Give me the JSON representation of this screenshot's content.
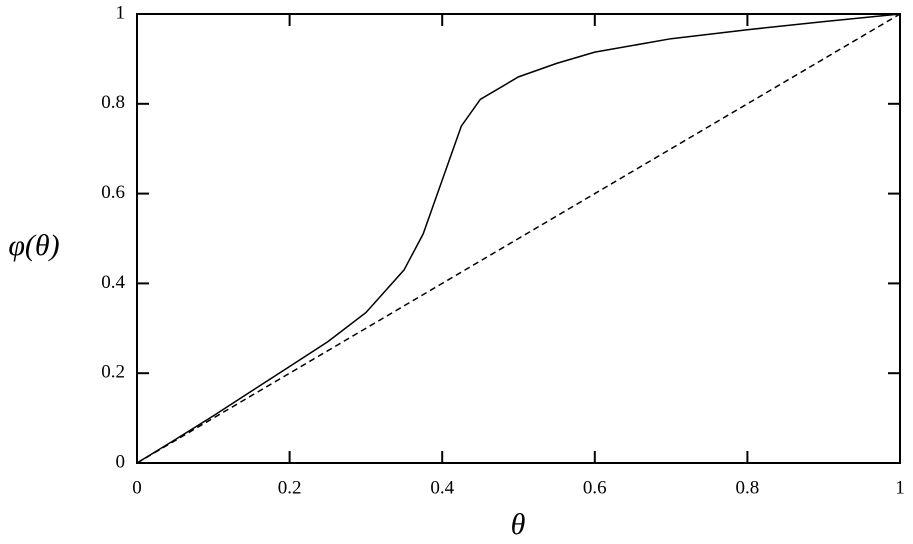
{
  "chart_data": {
    "type": "line",
    "xlabel": "θ",
    "ylabel": "φ(θ)",
    "xlim": [
      0,
      1
    ],
    "ylim": [
      0,
      1
    ],
    "xticks": [
      0,
      0.2,
      0.4,
      0.6,
      0.8,
      1
    ],
    "yticks": [
      0,
      0.2,
      0.4,
      0.6,
      0.8,
      1
    ],
    "series": [
      {
        "color": "#000000",
        "dash": false,
        "x": [
          0,
          0.05,
          0.1,
          0.15,
          0.2,
          0.25,
          0.3,
          0.35,
          0.375,
          0.4,
          0.425,
          0.45,
          0.5,
          0.55,
          0.6,
          0.7,
          0.8,
          0.9,
          1
        ],
        "values": [
          0,
          0.052,
          0.105,
          0.16,
          0.215,
          0.27,
          0.335,
          0.43,
          0.51,
          0.63,
          0.75,
          0.81,
          0.86,
          0.89,
          0.915,
          0.945,
          0.965,
          0.983,
          1
        ]
      },
      {
        "color": "#000000",
        "dash": true,
        "x": [
          0,
          1
        ],
        "values": [
          0,
          1
        ]
      }
    ]
  }
}
